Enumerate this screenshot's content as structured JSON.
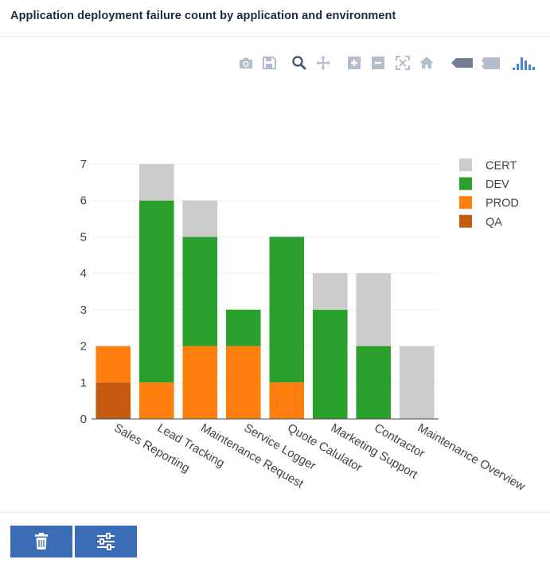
{
  "header": {
    "title": "Application deployment failure count by application and environment"
  },
  "modebar": {
    "buttons": [
      {
        "name": "camera-icon",
        "label": "Download plot as png"
      },
      {
        "name": "save-icon",
        "label": "Save"
      },
      {
        "name": "zoom-icon",
        "label": "Zoom"
      },
      {
        "name": "pan-icon",
        "label": "Pan"
      },
      {
        "name": "zoom-in-icon",
        "label": "Zoom in"
      },
      {
        "name": "zoom-out-icon",
        "label": "Zoom out"
      },
      {
        "name": "autoscale-icon",
        "label": "Autoscale"
      },
      {
        "name": "home-icon",
        "label": "Reset axes"
      },
      {
        "name": "hover-closest-icon",
        "label": "Show closest data on hover"
      },
      {
        "name": "hover-compare-icon",
        "label": "Compare data on hover"
      },
      {
        "name": "plotly-logo-icon",
        "label": "Produced with Plotly"
      }
    ]
  },
  "chart_data": {
    "type": "bar",
    "stacked": true,
    "title": "Application deployment failure count by application and environment",
    "xlabel": "",
    "ylabel": "",
    "ylim": [
      0,
      7
    ],
    "yticks": [
      0,
      1,
      2,
      3,
      4,
      5,
      6,
      7
    ],
    "grid": true,
    "legend_position": "top-right",
    "categories": [
      "Sales Reporting",
      "Lead Tracking",
      "Maintenance Request",
      "Service Logger",
      "Quote Calulator",
      "Marketing Support",
      "Contractor",
      "Maintenance Overview"
    ],
    "series": [
      {
        "name": "QA",
        "color": "#c55a11",
        "values": [
          1,
          0,
          0,
          0,
          0,
          0,
          0,
          0
        ]
      },
      {
        "name": "PROD",
        "color": "#ff7f0e",
        "values": [
          1,
          1,
          2,
          2,
          1,
          0,
          0,
          0
        ]
      },
      {
        "name": "DEV",
        "color": "#2ca02c",
        "values": [
          0,
          5,
          3,
          1,
          4,
          3,
          2,
          0
        ]
      },
      {
        "name": "CERT",
        "color": "#cccccc",
        "values": [
          0,
          1,
          1,
          0,
          0,
          1,
          2,
          2
        ]
      }
    ],
    "legend_order": [
      "CERT",
      "DEV",
      "PROD",
      "QA"
    ]
  },
  "footer": {
    "delete_label": "Delete",
    "settings_label": "Settings",
    "button_color": "#3a6db5"
  }
}
